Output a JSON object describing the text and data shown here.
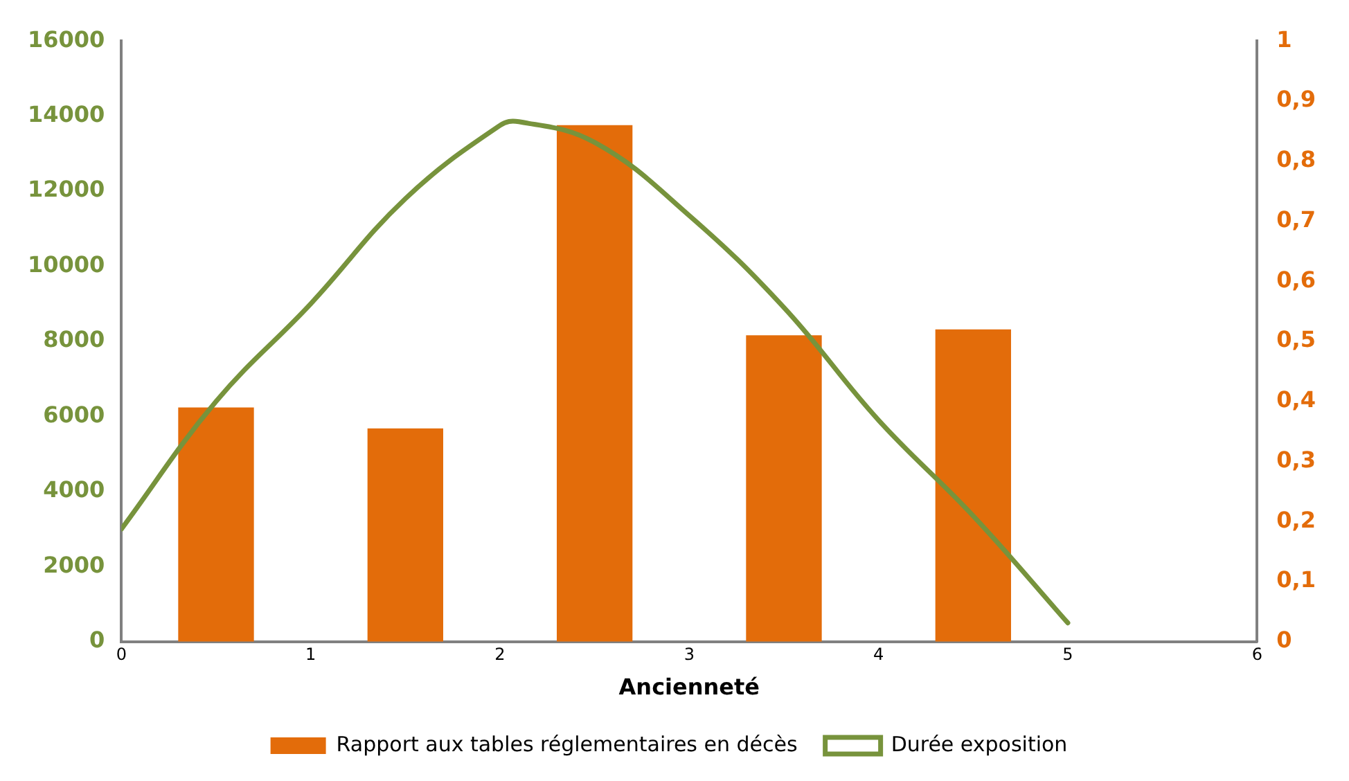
{
  "chart_data": {
    "type": "bar",
    "xlabel": "Ancienneté",
    "xlim": [
      0,
      6
    ],
    "xticks": [
      0,
      1,
      2,
      3,
      4,
      5,
      6
    ],
    "ylim": [
      0,
      16000
    ],
    "yticks": [
      0,
      2000,
      4000,
      6000,
      8000,
      10000,
      12000,
      14000,
      16000
    ],
    "y2lim": [
      0,
      1
    ],
    "y2ticks": [
      0,
      {
        "value": 0.1,
        "label": "0,1"
      },
      {
        "value": 0.2,
        "label": "0,2"
      },
      {
        "value": 0.3,
        "label": "0,3"
      },
      {
        "value": 0.4,
        "label": "0,4"
      },
      {
        "value": 0.5,
        "label": "0,5"
      },
      {
        "value": 0.6,
        "label": "0,6"
      },
      {
        "value": 0.7,
        "label": "0,7"
      },
      {
        "value": 0.8,
        "label": "0,8"
      },
      {
        "value": 0.9,
        "label": "0,9"
      },
      1
    ],
    "grid": false,
    "legend": "bottom",
    "series": [
      {
        "name": "Rapport aux tables réglementaires en décès",
        "axis": "y2",
        "color": "#e36c0a",
        "x": [
          0.5,
          1.5,
          2.5,
          3.5,
          4.5
        ],
        "values": [
          0.39,
          0.355,
          0.86,
          0.51,
          0.52
        ]
      },
      {
        "name": "Durée exposition",
        "type": "line",
        "color": "#77933c",
        "marker": "none",
        "line_style": "solid",
        "x": [
          0,
          0.5,
          1,
          1.5,
          2,
          2.1,
          2.5,
          3,
          3.5,
          4,
          4.5,
          5
        ],
        "values": [
          3000,
          6400,
          9000,
          11800,
          13750,
          13850,
          13300,
          11350,
          8900,
          5900,
          3350,
          500
        ]
      }
    ]
  }
}
